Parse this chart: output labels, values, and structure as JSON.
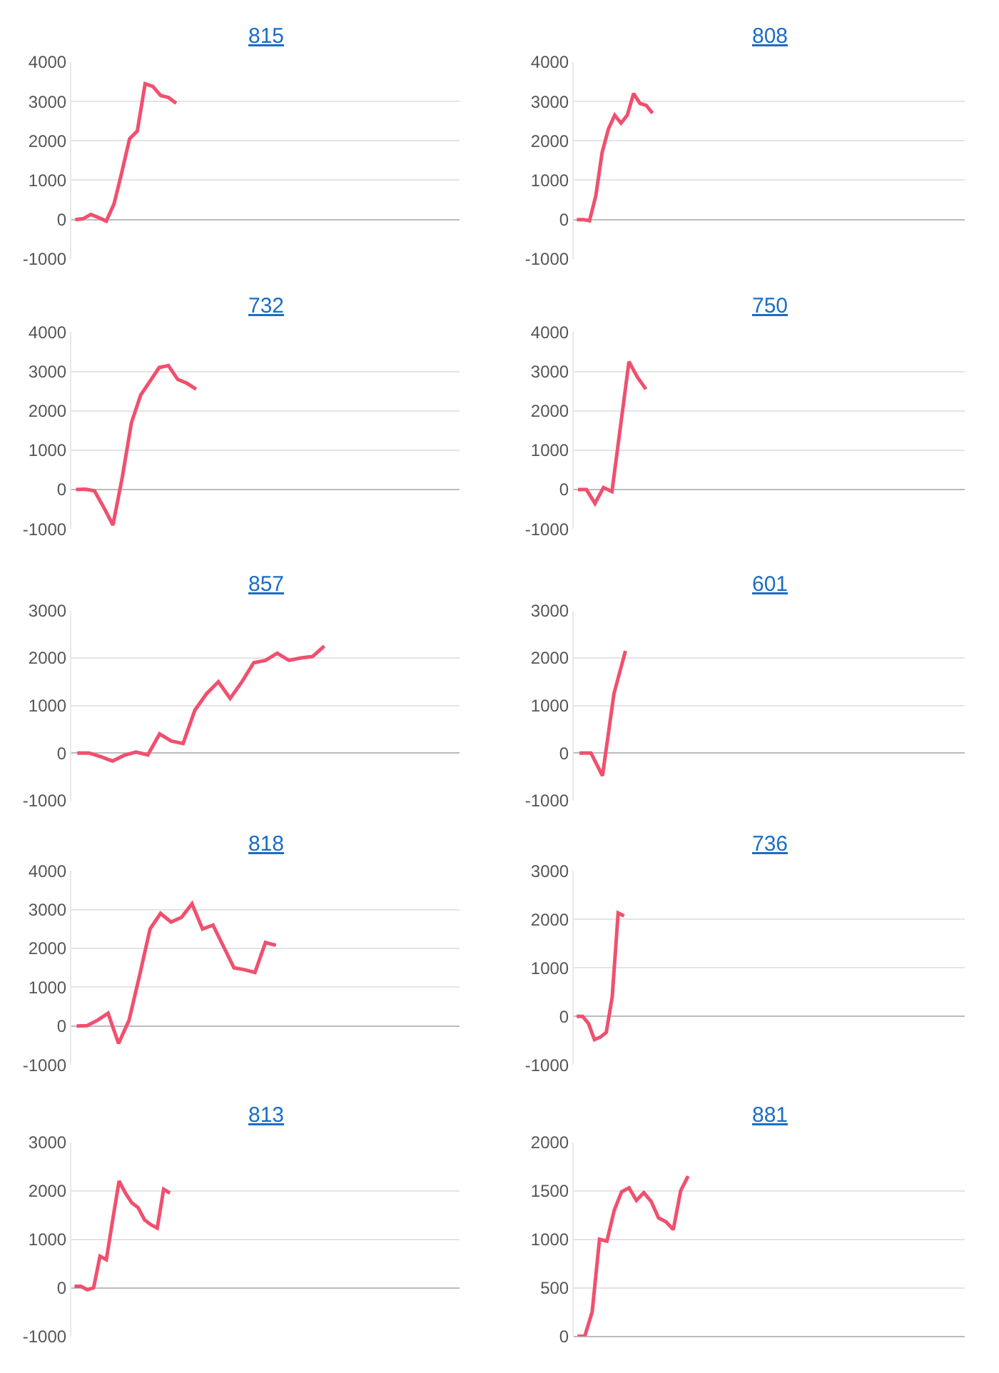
{
  "chart_data": [
    {
      "type": "line",
      "title": "815",
      "color": "#f0506e",
      "categories": [
        null,
        null,
        null,
        null,
        null,
        null,
        null,
        null,
        null,
        null,
        null,
        null,
        null,
        null,
        null,
        null,
        null,
        null,
        null,
        null,
        null,
        null,
        null,
        null,
        null,
        null,
        null,
        null,
        null,
        null,
        null,
        null,
        null,
        null,
        null,
        null,
        null,
        null,
        null,
        null,
        null,
        null,
        null,
        null,
        null,
        null,
        null,
        null,
        null,
        null
      ],
      "values": [
        0,
        20,
        130,
        50,
        -40,
        400,
        1200,
        2050,
        2250,
        3450,
        3380,
        3150,
        3100,
        2950,
        null,
        null,
        null,
        null,
        null,
        null,
        null,
        null,
        null,
        null,
        null,
        null,
        null,
        null,
        null,
        null,
        null,
        null,
        null,
        null,
        null,
        null,
        null,
        null,
        null,
        null,
        null,
        null,
        null,
        null,
        null,
        null,
        null,
        null,
        null,
        null
      ],
      "ylim": [
        -1000,
        4000
      ],
      "yticks": [
        -1000,
        0,
        1000,
        2000,
        3000,
        4000
      ],
      "grid": "y",
      "tick_labels": "y"
    },
    {
      "type": "line",
      "title": "808",
      "color": "#f0506e",
      "categories": [
        null,
        null,
        null,
        null,
        null,
        null,
        null,
        null,
        null,
        null,
        null,
        null,
        null,
        null,
        null,
        null,
        null,
        null,
        null,
        null,
        null,
        null,
        null,
        null,
        null,
        null,
        null,
        null,
        null,
        null,
        null,
        null,
        null,
        null,
        null,
        null,
        null,
        null,
        null,
        null,
        null,
        null,
        null,
        null,
        null,
        null,
        null,
        null,
        null,
        null,
        null,
        null,
        null,
        null,
        null,
        null,
        null,
        null,
        null,
        null,
        null,
        null
      ],
      "values": [
        0,
        0,
        -30,
        600,
        1700,
        2300,
        2650,
        2450,
        2650,
        3200,
        2950,
        2900,
        2700,
        null,
        null,
        null,
        null,
        null,
        null,
        null,
        null,
        null,
        null,
        null,
        null,
        null,
        null,
        null,
        null,
        null,
        null,
        null,
        null,
        null,
        null,
        null,
        null,
        null,
        null,
        null,
        null,
        null,
        null,
        null,
        null,
        null,
        null,
        null,
        null,
        null,
        null,
        null,
        null,
        null,
        null,
        null,
        null,
        null,
        null,
        null,
        null,
        null
      ],
      "ylim": [
        -1000,
        4000
      ],
      "yticks": [
        -1000,
        0,
        1000,
        2000,
        3000,
        4000
      ],
      "grid": "y",
      "tick_labels": "y"
    },
    {
      "type": "line",
      "title": "732",
      "color": "#f0506e",
      "categories": [
        null,
        null,
        null,
        null,
        null,
        null,
        null,
        null,
        null,
        null,
        null,
        null,
        null,
        null,
        null,
        null,
        null,
        null,
        null,
        null,
        null,
        null,
        null,
        null,
        null,
        null,
        null,
        null,
        null,
        null,
        null,
        null,
        null,
        null,
        null,
        null,
        null,
        null,
        null,
        null,
        null,
        null
      ],
      "values": [
        0,
        10,
        -30,
        -450,
        -900,
        300,
        1700,
        2400,
        2750,
        3100,
        3150,
        2800,
        2700,
        2550,
        null,
        null,
        null,
        null,
        null,
        null,
        null,
        null,
        null,
        null,
        null,
        null,
        null,
        null,
        null,
        null,
        null,
        null,
        null,
        null,
        null,
        null,
        null,
        null,
        null,
        null,
        null,
        null
      ],
      "ylim": [
        -1000,
        4000
      ],
      "yticks": [
        -1000,
        0,
        1000,
        2000,
        3000,
        4000
      ],
      "grid": "y",
      "tick_labels": "y"
    },
    {
      "type": "line",
      "title": "750",
      "color": "#f0506e",
      "categories": [
        null,
        null,
        null,
        null,
        null,
        null,
        null,
        null,
        null,
        null,
        null,
        null,
        null,
        null,
        null,
        null,
        null,
        null,
        null,
        null,
        null,
        null,
        null,
        null,
        null,
        null,
        null,
        null,
        null,
        null,
        null,
        null,
        null,
        null,
        null,
        null,
        null,
        null,
        null,
        null,
        null,
        null,
        null,
        null,
        null,
        null
      ],
      "values": [
        0,
        0,
        -350,
        50,
        -50,
        1600,
        3250,
        2850,
        2550,
        null,
        null,
        null,
        null,
        null,
        null,
        null,
        null,
        null,
        null,
        null,
        null,
        null,
        null,
        null,
        null,
        null,
        null,
        null,
        null,
        null,
        null,
        null,
        null,
        null,
        null,
        null,
        null,
        null,
        null,
        null,
        null,
        null,
        null,
        null,
        null,
        null
      ],
      "ylim": [
        -1000,
        4000
      ],
      "yticks": [
        -1000,
        0,
        1000,
        2000,
        3000,
        4000
      ],
      "grid": "y",
      "tick_labels": "y"
    },
    {
      "type": "line",
      "title": "857",
      "color": "#f0506e",
      "categories": [
        null,
        null,
        null,
        null,
        null,
        null,
        null,
        null,
        null,
        null,
        null,
        null,
        null,
        null,
        null,
        null,
        null,
        null,
        null,
        null,
        null,
        null,
        null,
        null,
        null,
        null,
        null,
        null,
        null,
        null,
        null,
        null,
        null
      ],
      "values": [
        0,
        0,
        -80,
        -170,
        -50,
        20,
        -40,
        400,
        250,
        200,
        900,
        1250,
        1500,
        1150,
        1500,
        1900,
        1950,
        2100,
        1950,
        2000,
        2030,
        2250,
        null,
        null,
        null,
        null,
        null,
        null,
        null,
        null,
        null,
        null,
        null
      ],
      "ylim": [
        -1000,
        3000
      ],
      "yticks": [
        -1000,
        0,
        1000,
        2000,
        3000
      ],
      "grid": "y",
      "tick_labels": "y"
    },
    {
      "type": "line",
      "title": "601",
      "color": "#f0506e",
      "categories": [
        null,
        null,
        null,
        null,
        null,
        null,
        null,
        null,
        null,
        null,
        null,
        null,
        null,
        null,
        null,
        null,
        null,
        null,
        null,
        null,
        null,
        null,
        null,
        null,
        null,
        null,
        null,
        null,
        null,
        null,
        null,
        null,
        null,
        null
      ],
      "values": [
        0,
        0,
        -480,
        1250,
        2150,
        null,
        null,
        null,
        null,
        null,
        null,
        null,
        null,
        null,
        null,
        null,
        null,
        null,
        null,
        null,
        null,
        null,
        null,
        null,
        null,
        null,
        null,
        null,
        null,
        null,
        null,
        null,
        null,
        null
      ],
      "ylim": [
        -1000,
        3000
      ],
      "yticks": [
        -1000,
        0,
        1000,
        2000,
        3000
      ],
      "grid": "y",
      "tick_labels": "y"
    },
    {
      "type": "line",
      "title": "818",
      "color": "#f0506e",
      "categories": [
        null,
        null,
        null,
        null,
        null,
        null,
        null,
        null,
        null,
        null,
        null,
        null,
        null,
        null,
        null,
        null,
        null,
        null,
        null,
        null,
        null,
        null,
        null,
        null,
        null,
        null,
        null,
        null,
        null,
        null,
        null,
        null,
        null,
        null,
        null,
        null,
        null
      ],
      "values": [
        0,
        10,
        150,
        330,
        -450,
        150,
        1300,
        2500,
        2900,
        2680,
        2800,
        3150,
        2500,
        2600,
        2050,
        1500,
        1450,
        1380,
        2150,
        2080,
        null,
        null,
        null,
        null,
        null,
        null,
        null,
        null,
        null,
        null,
        null,
        null,
        null,
        null,
        null,
        null,
        null
      ],
      "ylim": [
        -1000,
        4000
      ],
      "yticks": [
        -1000,
        0,
        1000,
        2000,
        3000,
        4000
      ],
      "grid": "y",
      "tick_labels": "y"
    },
    {
      "type": "line",
      "title": "736",
      "color": "#f0506e",
      "categories": [
        null,
        null,
        null,
        null,
        null,
        null,
        null,
        null,
        null,
        null,
        null,
        null,
        null,
        null,
        null,
        null,
        null,
        null,
        null,
        null,
        null,
        null,
        null,
        null,
        null,
        null,
        null,
        null,
        null,
        null,
        null,
        null,
        null,
        null,
        null,
        null,
        null,
        null,
        null,
        null,
        null,
        null,
        null,
        null,
        null,
        null,
        null,
        null,
        null,
        null,
        null,
        null,
        null,
        null,
        null,
        null,
        null,
        null,
        null,
        null,
        null,
        null,
        null,
        null,
        null,
        null
      ],
      "values": [
        0,
        0,
        -150,
        -480,
        -430,
        -330,
        400,
        2130,
        2070,
        null,
        null,
        null,
        null,
        null,
        null,
        null,
        null,
        null,
        null,
        null,
        null,
        null,
        null,
        null,
        null,
        null,
        null,
        null,
        null,
        null,
        null,
        null,
        null,
        null,
        null,
        null,
        null,
        null,
        null,
        null,
        null,
        null,
        null,
        null,
        null,
        null,
        null,
        null,
        null,
        null,
        null,
        null,
        null,
        null,
        null,
        null,
        null,
        null,
        null,
        null,
        null,
        null,
        null,
        null,
        null,
        null
      ],
      "ylim": [
        -1000,
        3000
      ],
      "yticks": [
        -1000,
        0,
        1000,
        2000,
        3000
      ],
      "grid": "y",
      "tick_labels": "y"
    },
    {
      "type": "line",
      "title": "813",
      "color": "#f0506e",
      "categories": [
        null,
        null,
        null,
        null,
        null,
        null,
        null,
        null,
        null,
        null,
        null,
        null,
        null,
        null,
        null,
        null,
        null,
        null,
        null,
        null,
        null,
        null,
        null,
        null,
        null,
        null,
        null,
        null,
        null,
        null,
        null,
        null,
        null,
        null,
        null,
        null,
        null,
        null,
        null,
        null,
        null,
        null,
        null,
        null,
        null,
        null,
        null,
        null,
        null,
        null,
        null,
        null,
        null,
        null,
        null,
        null,
        null,
        null,
        null,
        null,
        null
      ],
      "values": [
        30,
        30,
        -40,
        0,
        650,
        580,
        1400,
        2200,
        1950,
        1750,
        1650,
        1400,
        1300,
        1230,
        2030,
        1950,
        null,
        null,
        null,
        null,
        null,
        null,
        null,
        null,
        null,
        null,
        null,
        null,
        null,
        null,
        null,
        null,
        null,
        null,
        null,
        null,
        null,
        null,
        null,
        null,
        null,
        null,
        null,
        null,
        null,
        null,
        null,
        null,
        null,
        null,
        null,
        null,
        null,
        null,
        null,
        null,
        null,
        null,
        null,
        null,
        null
      ],
      "ylim": [
        -1000,
        3000
      ],
      "yticks": [
        -1000,
        0,
        1000,
        2000,
        3000
      ],
      "grid": "y",
      "tick_labels": "y"
    },
    {
      "type": "line",
      "title": "881",
      "color": "#f0506e",
      "categories": [
        null,
        null,
        null,
        null,
        null,
        null,
        null,
        null,
        null,
        null,
        null,
        null,
        null,
        null,
        null,
        null,
        null,
        null,
        null,
        null,
        null,
        null,
        null,
        null,
        null,
        null,
        null,
        null,
        null,
        null,
        null,
        null,
        null,
        null,
        null,
        null,
        null,
        null,
        null,
        null,
        null,
        null,
        null,
        null,
        null,
        null,
        null,
        null,
        null,
        null,
        null,
        null,
        null
      ],
      "values": [
        0,
        0,
        250,
        1000,
        980,
        1300,
        1490,
        1530,
        1400,
        1480,
        1390,
        1220,
        1180,
        1100,
        1500,
        1650,
        null,
        null,
        null,
        null,
        null,
        null,
        null,
        null,
        null,
        null,
        null,
        null,
        null,
        null,
        null,
        null,
        null,
        null,
        null,
        null,
        null,
        null,
        null,
        null,
        null,
        null,
        null,
        null,
        null,
        null,
        null,
        null,
        null,
        null,
        null,
        null,
        null
      ],
      "ylim": [
        0,
        2000
      ],
      "yticks": [
        0,
        500,
        1000,
        1500,
        2000
      ],
      "grid": "y",
      "tick_labels": "y"
    }
  ]
}
